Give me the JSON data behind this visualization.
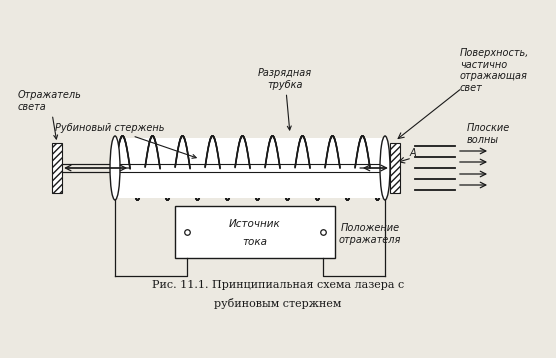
{
  "bg_color": "#ece9e1",
  "title_line1": "Рис. 11.1. Принципиальная схема лазера с",
  "title_line2": "рубиновым стержнем",
  "labels": {
    "reflector": "Отражатель\nсвета",
    "ruby": "Рубиновый стержень",
    "source_line1": "Источник",
    "source_line2": "тока",
    "discharge": "Разрядная\nтрубка",
    "surface": "Поверхность,\nчастично\nотражающая\nсвет",
    "position": "Положение\nотражателя",
    "flat_waves": "Плоские\nволны",
    "A": "А"
  },
  "colors": {
    "line": "#1a1a1a"
  },
  "figsize": [
    5.56,
    3.58
  ],
  "dpi": 100
}
